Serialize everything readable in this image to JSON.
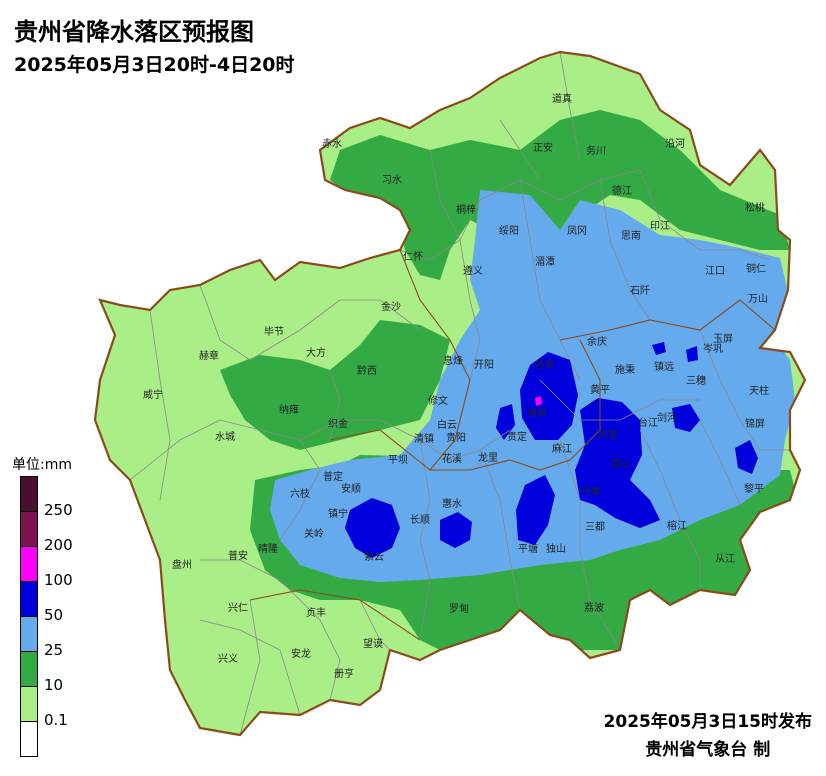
{
  "title": "贵州省降水落区预报图",
  "subtitle": "2025年05月3日20时-4日20时",
  "legend": {
    "unit": "单位:mm",
    "classes": [
      {
        "label": "250",
        "color": "#4a0e2e"
      },
      {
        "label": "200",
        "color": "#7b1450"
      },
      {
        "label": "100",
        "color": "#ff00ff"
      },
      {
        "label": "50",
        "color": "#0000dd"
      },
      {
        "label": "25",
        "color": "#66aaee"
      },
      {
        "label": "10",
        "color": "#33aa44"
      },
      {
        "label": "0.1",
        "color": "#aaee88"
      },
      {
        "label": "",
        "color": "#ffffff"
      }
    ]
  },
  "issued": "2025年05月3日15时发布",
  "agency": "贵州省气象台 制",
  "colors": {
    "light_green": "#aaee88",
    "green": "#33aa44",
    "light_blue": "#66aaee",
    "blue": "#0000dd",
    "magenta": "#ff00ff",
    "border": "#8b4a1a",
    "county_line": "#888888"
  },
  "cities": [
    {
      "name": "赤水"
    },
    {
      "name": "习水"
    },
    {
      "name": "道真"
    },
    {
      "name": "正安"
    },
    {
      "name": "务川"
    },
    {
      "name": "沿河"
    },
    {
      "name": "德江"
    },
    {
      "name": "松桃"
    },
    {
      "name": "桐梓"
    },
    {
      "name": "绥阳"
    },
    {
      "name": "凤冈"
    },
    {
      "name": "思南"
    },
    {
      "name": "印江"
    },
    {
      "name": "仁怀"
    },
    {
      "name": "遵义"
    },
    {
      "name": "湄潭"
    },
    {
      "name": "江口"
    },
    {
      "name": "铜仁"
    },
    {
      "name": "石阡"
    },
    {
      "name": "万山"
    },
    {
      "name": "金沙"
    },
    {
      "name": "毕节"
    },
    {
      "name": "大方"
    },
    {
      "name": "赫章"
    },
    {
      "name": "黔西"
    },
    {
      "name": "息烽"
    },
    {
      "name": "开阳"
    },
    {
      "name": "瓮安"
    },
    {
      "name": "余庆"
    },
    {
      "name": "施秉"
    },
    {
      "name": "镇远"
    },
    {
      "name": "岑巩"
    },
    {
      "name": "玉屏"
    },
    {
      "name": "威宁"
    },
    {
      "name": "纳雍"
    },
    {
      "name": "织金"
    },
    {
      "name": "修文"
    },
    {
      "name": "福泉"
    },
    {
      "name": "黄平"
    },
    {
      "name": "三穗"
    },
    {
      "name": "天柱"
    },
    {
      "name": "剑河"
    },
    {
      "name": "台江"
    },
    {
      "name": "锦屏"
    },
    {
      "name": "水城"
    },
    {
      "name": "清镇"
    },
    {
      "name": "白云"
    },
    {
      "name": "贵阳"
    },
    {
      "name": "贵定"
    },
    {
      "name": "凯里"
    },
    {
      "name": "雷山"
    },
    {
      "name": "黎平"
    },
    {
      "name": "平坝"
    },
    {
      "name": "花溪"
    },
    {
      "name": "龙里"
    },
    {
      "name": "麻江"
    },
    {
      "name": "丹寨"
    },
    {
      "name": "普定"
    },
    {
      "name": "安顺"
    },
    {
      "name": "六枝"
    },
    {
      "name": "镇宁"
    },
    {
      "name": "惠水"
    },
    {
      "name": "长顺"
    },
    {
      "name": "关岭"
    },
    {
      "name": "三都"
    },
    {
      "name": "榕江"
    },
    {
      "name": "紫云"
    },
    {
      "name": "平塘"
    },
    {
      "name": "独山"
    },
    {
      "name": "从江"
    },
    {
      "name": "晴隆"
    },
    {
      "name": "普安"
    },
    {
      "name": "盘州"
    },
    {
      "name": "兴仁"
    },
    {
      "name": "贞丰"
    },
    {
      "name": "罗甸"
    },
    {
      "name": "荔波"
    },
    {
      "name": "望谟"
    },
    {
      "name": "兴义"
    },
    {
      "name": "安龙"
    },
    {
      "name": "册亨"
    }
  ]
}
